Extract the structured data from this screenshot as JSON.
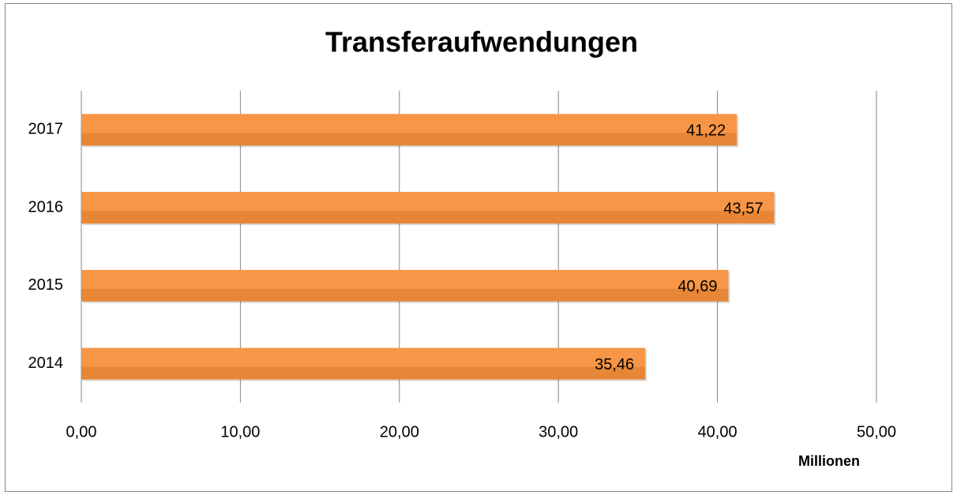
{
  "chart_data": {
    "type": "bar",
    "orientation": "horizontal",
    "title": "Transferaufwendungen",
    "categories": [
      "2014",
      "2015",
      "2016",
      "2017"
    ],
    "values": [
      35.46,
      40.69,
      43.57,
      41.22
    ],
    "value_labels": [
      "35,46",
      "40,69",
      "43,57",
      "41,22"
    ],
    "color": "#f79646",
    "xlabel": "Millionen",
    "xlim": [
      0,
      50
    ],
    "xticks": [
      {
        "value": 0,
        "label": "0,00"
      },
      {
        "value": 10,
        "label": "10,00"
      },
      {
        "value": 20,
        "label": "20,00"
      },
      {
        "value": 30,
        "label": "30,00"
      },
      {
        "value": 40,
        "label": "40,00"
      },
      {
        "value": 50,
        "label": "50,00"
      }
    ],
    "grid": true
  }
}
